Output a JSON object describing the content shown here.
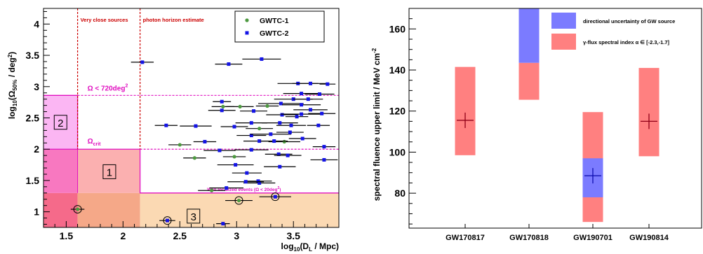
{
  "chart_data": [
    {
      "type": "scatter",
      "xlabel": "log10(DL / Mpc)",
      "ylabel": "log10(Ω50% / deg²)",
      "xlim": [
        1.3,
        3.9
      ],
      "ylim": [
        0.75,
        4.25
      ],
      "xticks": [
        "1.5",
        "2",
        "2.5",
        "3",
        "3.5"
      ],
      "yticks": [
        "1",
        "1.5",
        "2",
        "2.5",
        "3",
        "3.5",
        "4"
      ],
      "annotations": {
        "very_close": "Very close sources",
        "photon_horizon": "photon horizon estimate",
        "omega_720": "Ω < 720deg",
        "omega_720_sup": "2",
        "omega_crit": "Ω",
        "omega_crit_sub": "crit",
        "well_localized": "Well localized events (Ω < 20deg",
        "well_localized_sup": "2",
        "well_localized_end": ")",
        "region_labels": [
          "1",
          "2",
          "3"
        ]
      },
      "regions": [
        {
          "x": [
            1.3,
            1.6
          ],
          "y": [
            0.75,
            1.3
          ],
          "color": "#f56a8a"
        },
        {
          "x": [
            1.6,
            2.15
          ],
          "y": [
            0.75,
            1.3
          ],
          "color": "#f5a888"
        },
        {
          "x": [
            2.15,
            3.9
          ],
          "y": [
            0.75,
            1.3
          ],
          "color": "#fbd9b3"
        },
        {
          "x": [
            1.3,
            1.6
          ],
          "y": [
            1.3,
            2.0
          ],
          "color": "#f878c0"
        },
        {
          "x": [
            1.6,
            2.15
          ],
          "y": [
            1.3,
            2.0
          ],
          "color": "#fbb0b0"
        },
        {
          "x": [
            1.3,
            1.6
          ],
          "y": [
            2.0,
            2.86
          ],
          "color": "#fbb6f3"
        }
      ],
      "vlines": [
        1.6,
        2.15
      ],
      "hlines": [
        2.86,
        2.0
      ],
      "legend": {
        "position": "top-right",
        "entries": [
          "GWTC-1",
          "GWTC-2"
        ]
      },
      "series": [
        {
          "name": "GWTC-1",
          "color": "#4d9940",
          "points": [
            {
              "x": 1.6,
              "xerr": 0.06,
              "y": 1.04,
              "ring": true
            },
            {
              "x": 3.02,
              "xerr": 0.12,
              "y": 1.18,
              "ring": true
            },
            {
              "x": 2.5,
              "xerr": 0.1,
              "y": 2.07
            },
            {
              "x": 2.63,
              "xerr": 0.1,
              "y": 1.86
            },
            {
              "x": 2.78,
              "xerr": 0.12,
              "y": 1.34
            },
            {
              "x": 2.98,
              "xerr": 0.1,
              "y": 1.88
            },
            {
              "x": 2.88,
              "xerr": 0.1,
              "y": 2.68
            },
            {
              "x": 3.03,
              "xerr": 0.12,
              "y": 2.68
            },
            {
              "x": 3.27,
              "xerr": 0.1,
              "y": 2.69
            },
            {
              "x": 3.2,
              "xerr": 0.12,
              "y": 2.33
            },
            {
              "x": 3.42,
              "xerr": 0.14,
              "y": 2.12
            }
          ]
        },
        {
          "name": "GWTC-2",
          "color": "#1414e6",
          "points": [
            {
              "x": 2.39,
              "xerr": 0.07,
              "y": 0.86,
              "ring": true
            },
            {
              "x": 3.34,
              "xerr": 0.14,
              "y": 1.24,
              "ring": true
            },
            {
              "x": 2.88,
              "xerr": 0.06,
              "y": 0.81
            },
            {
              "x": 2.17,
              "xerr": 0.1,
              "y": 3.39
            },
            {
              "x": 2.93,
              "xerr": 0.12,
              "y": 3.36
            },
            {
              "x": 3.22,
              "xerr": 0.17,
              "y": 3.44
            },
            {
              "x": 3.54,
              "xerr": 0.18,
              "y": 3.05
            },
            {
              "x": 3.65,
              "xerr": 0.16,
              "y": 3.05
            },
            {
              "x": 3.8,
              "xerr": 0.07,
              "y": 3.04
            },
            {
              "x": 3.57,
              "xerr": 0.16,
              "y": 2.89
            },
            {
              "x": 3.73,
              "xerr": 0.13,
              "y": 2.88
            },
            {
              "x": 3.5,
              "xerr": 0.17,
              "y": 2.8
            },
            {
              "x": 3.63,
              "xerr": 0.13,
              "y": 2.8
            },
            {
              "x": 3.39,
              "xerr": 0.2,
              "y": 2.73
            },
            {
              "x": 3.57,
              "xerr": 0.17,
              "y": 2.71
            },
            {
              "x": 2.87,
              "xerr": 0.08,
              "y": 2.76
            },
            {
              "x": 2.87,
              "xerr": 0.12,
              "y": 2.62
            },
            {
              "x": 3.15,
              "xerr": 0.12,
              "y": 2.61
            },
            {
              "x": 3.65,
              "xerr": 0.15,
              "y": 2.63
            },
            {
              "x": 3.4,
              "xerr": 0.14,
              "y": 2.55
            },
            {
              "x": 3.57,
              "xerr": 0.18,
              "y": 2.56
            },
            {
              "x": 3.75,
              "xerr": 0.12,
              "y": 2.57
            },
            {
              "x": 3.53,
              "xerr": 0.1,
              "y": 2.52
            },
            {
              "x": 2.38,
              "xerr": 0.1,
              "y": 2.38
            },
            {
              "x": 2.64,
              "xerr": 0.14,
              "y": 2.37
            },
            {
              "x": 2.98,
              "xerr": 0.12,
              "y": 2.36
            },
            {
              "x": 3.13,
              "xerr": 0.14,
              "y": 2.42
            },
            {
              "x": 3.38,
              "xerr": 0.16,
              "y": 2.42
            },
            {
              "x": 3.48,
              "xerr": 0.13,
              "y": 2.38
            },
            {
              "x": 3.72,
              "xerr": 0.1,
              "y": 2.38
            },
            {
              "x": 3.13,
              "xerr": 0.13,
              "y": 2.22
            },
            {
              "x": 3.3,
              "xerr": 0.18,
              "y": 2.24
            },
            {
              "x": 3.47,
              "xerr": 0.12,
              "y": 2.27
            },
            {
              "x": 2.72,
              "xerr": 0.1,
              "y": 2.12
            },
            {
              "x": 3.2,
              "xerr": 0.14,
              "y": 2.13
            },
            {
              "x": 3.33,
              "xerr": 0.12,
              "y": 2.13
            },
            {
              "x": 3.58,
              "xerr": 0.12,
              "y": 2.17
            },
            {
              "x": 3.77,
              "xerr": 0.1,
              "y": 2.04
            },
            {
              "x": 2.85,
              "xerr": 0.14,
              "y": 1.98
            },
            {
              "x": 3.13,
              "xerr": 0.15,
              "y": 1.99
            },
            {
              "x": 3.37,
              "xerr": 0.12,
              "y": 1.92
            },
            {
              "x": 3.45,
              "xerr": 0.12,
              "y": 1.9
            },
            {
              "x": 3.77,
              "xerr": 0.12,
              "y": 1.83
            },
            {
              "x": 2.99,
              "xerr": 0.16,
              "y": 1.75
            },
            {
              "x": 3.09,
              "xerr": 0.13,
              "y": 1.62
            },
            {
              "x": 3.38,
              "xerr": 0.14,
              "y": 1.72
            },
            {
              "x": 3.19,
              "xerr": 0.12,
              "y": 1.49
            },
            {
              "x": 3.2,
              "xerr": 0.14,
              "y": 1.46
            },
            {
              "x": 3.08,
              "xerr": 0.16,
              "y": 1.48
            },
            {
              "x": 2.91,
              "xerr": 0.15,
              "y": 1.38
            }
          ]
        }
      ]
    },
    {
      "type": "bar",
      "ylabel": "spectral fluence upper limit / MeV cm",
      "ylabel_sup": "-2",
      "ylim": [
        63,
        170
      ],
      "yticks": [
        "80",
        "100",
        "120",
        "140",
        "160"
      ],
      "categories": [
        "GW170817",
        "GW170818",
        "GW190701",
        "GW190814"
      ],
      "legend": {
        "position": "top-right",
        "entries": [
          {
            "label": "directional uncertainty of GW source",
            "color": "#7b7bff"
          },
          {
            "label": "γ-flux spectral index α ∈ [-2.3,-1.7]",
            "color": "#ff8080"
          }
        ]
      },
      "bars": [
        {
          "category": "GW170817",
          "red": [
            98.5,
            141.5
          ],
          "value": 115.5
        },
        {
          "category": "GW170818",
          "red": [
            125.5,
            143.5
          ],
          "blue": [
            143.5,
            170
          ]
        },
        {
          "category": "GW190701",
          "red": [
            66,
            119.5
          ],
          "blue": [
            78,
            97
          ],
          "value": 88.5
        },
        {
          "category": "GW190814",
          "red": [
            98,
            141
          ],
          "value": 115
        }
      ]
    }
  ]
}
